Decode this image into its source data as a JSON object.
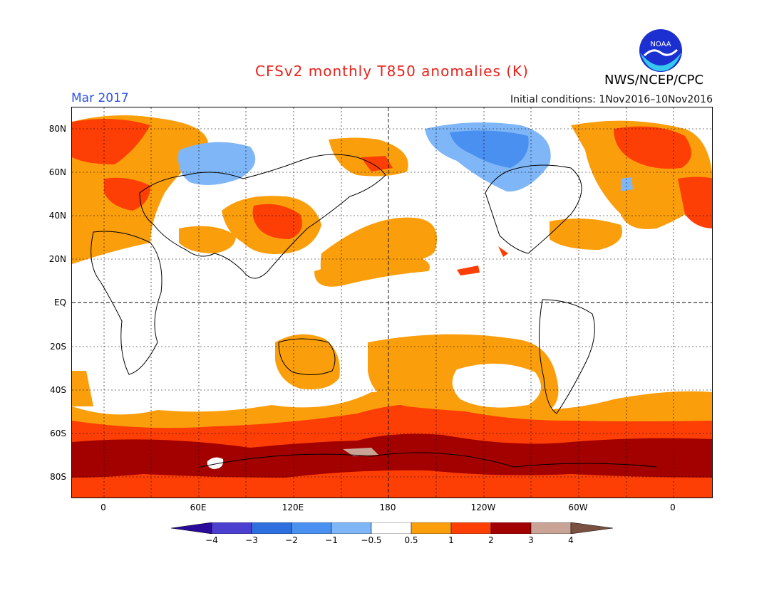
{
  "title": "CFSv2 monthly T850 anomalies (K)",
  "month": "Mar 2017",
  "initial_conditions": "Initial conditions: 1Nov2016–10Nov2016",
  "agency": "NWS/NCEP/CPC",
  "logo_text": "NOAA",
  "lat_labels": [
    "80N",
    "60N",
    "40N",
    "20N",
    "EQ",
    "20S",
    "40S",
    "60S",
    "80S"
  ],
  "lon_labels": [
    "0",
    "60E",
    "120E",
    "180",
    "120W",
    "60W",
    "0"
  ],
  "colorbar": {
    "labels": [
      "−4",
      "−3",
      "−2",
      "−1",
      "−0.5",
      "0.5",
      "1",
      "2",
      "3",
      "4"
    ],
    "colors": [
      "#2a0a9a",
      "#4a3fcf",
      "#2e6fe0",
      "#4a90f0",
      "#7fb6f7",
      "#ffffff",
      "#fb9e0b",
      "#fd3f05",
      "#a30000",
      "#c9a496",
      "#7a5040"
    ]
  },
  "colors": {
    "title": "#e8221b",
    "month": "#2c52e6"
  }
}
